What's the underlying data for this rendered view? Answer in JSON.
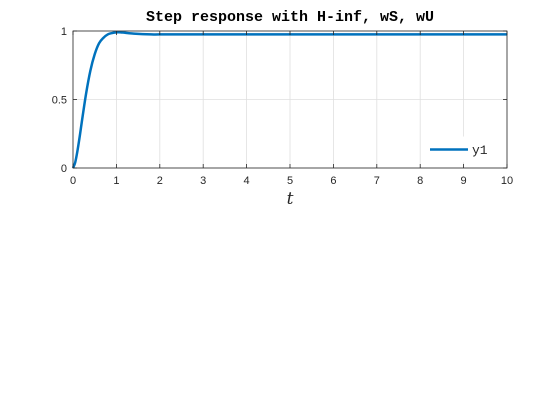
{
  "chart_data": {
    "type": "line",
    "title": "Step response with H-inf, wS, wU",
    "xlabel": "t",
    "ylabel": "",
    "xlim": [
      0,
      10
    ],
    "ylim": [
      0,
      1
    ],
    "x_ticks": [
      "0",
      "1",
      "2",
      "3",
      "4",
      "5",
      "6",
      "7",
      "8",
      "9",
      "10"
    ],
    "y_ticks": [
      "0",
      "0.5",
      "1"
    ],
    "grid": true,
    "legend_position": "bottom-right",
    "line_color": "#0072bd",
    "series": [
      {
        "name": "y1",
        "x": [
          0,
          0.05,
          0.1,
          0.15,
          0.2,
          0.3,
          0.4,
          0.5,
          0.6,
          0.7,
          0.8,
          0.9,
          1.0,
          1.1,
          1.2,
          1.4,
          1.6,
          1.8,
          2.0,
          2.5,
          3,
          4,
          5,
          6,
          7,
          8,
          9,
          10
        ],
        "y": [
          0,
          0.04,
          0.12,
          0.22,
          0.33,
          0.54,
          0.71,
          0.83,
          0.91,
          0.95,
          0.975,
          0.985,
          0.99,
          0.99,
          0.987,
          0.981,
          0.977,
          0.975,
          0.975,
          0.975,
          0.975,
          0.975,
          0.975,
          0.975,
          0.975,
          0.975,
          0.975,
          0.975
        ]
      }
    ]
  }
}
